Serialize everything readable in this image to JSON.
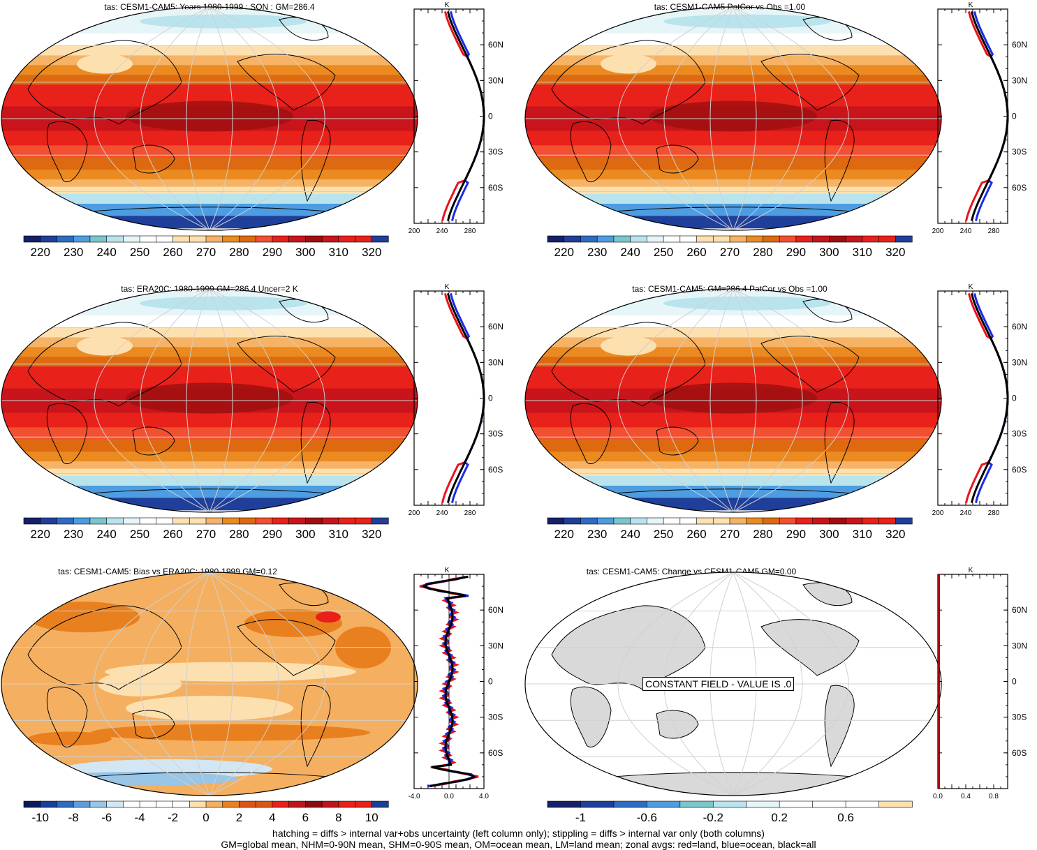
{
  "colors": {
    "warm": [
      "#fde0b0",
      "#f6b366",
      "#ea8a20",
      "#dd6a10",
      "#f25030",
      "#e8211a",
      "#c8141a",
      "#a00f10"
    ],
    "cool": [
      "#16206a",
      "#1f3f9a",
      "#2e6cc3",
      "#4d9de0",
      "#79c6cc",
      "#b9e4ee",
      "#e6f5f8",
      "#ffffff"
    ],
    "bias_pos": [
      "#fde0b0",
      "#f4b060",
      "#e88020",
      "#dd5515",
      "#e8201a",
      "#c01418",
      "#8c0b10"
    ],
    "bias_neg": [
      "#0b1a58",
      "#1a3f96",
      "#2d6bbf",
      "#5e9dd8",
      "#99c5e6",
      "#d2e7f3",
      "#ffffff"
    ],
    "land": "#d9d9d9",
    "line_land": "#e8141a",
    "line_ocean": "#1a2be8",
    "line_all": "#000000",
    "grid": "#d0d0d0"
  },
  "panels": [
    {
      "title": "tas: CESM1-CAM5: Years 1980-1999 : SON : GM=286.4",
      "type": "abs"
    },
    {
      "title": "tas: CESM1-CAM5 PatCor vs Obs =1.00",
      "type": "abs"
    },
    {
      "title": "tas: ERA20C: 1980-1999 GM=286.4 Uncer=2 K",
      "type": "abs"
    },
    {
      "title": "tas: CESM1-CAM5: GM=286.4 PatCor vs Obs =1.00",
      "type": "abs"
    },
    {
      "title": "tas: CESM1-CAM5: Bias vs ERA20C: 1980-1999  GM=0.12",
      "type": "bias"
    },
    {
      "title": "tas: CESM1-CAM5: Change vs CESM1-CAM5 GM=0.00",
      "type": "const"
    }
  ],
  "constant_label": "CONSTANT FIELD - VALUE IS .0",
  "zonal": {
    "unit": "K",
    "lat_labels": [
      "60N",
      "30N",
      "0",
      "30S",
      "60S"
    ],
    "abs_ticks": [
      "200",
      "240",
      "280"
    ],
    "bias_ticks": [
      "-4.0",
      "0.0",
      "4.0"
    ],
    "const_ticks": [
      "0.0",
      "0.4",
      "0.8"
    ]
  },
  "colorbars": {
    "abs": [
      "220",
      "230",
      "240",
      "250",
      "260",
      "270",
      "280",
      "290",
      "300",
      "310",
      "320"
    ],
    "bias": [
      "-10",
      "-8",
      "-6",
      "-4",
      "-2",
      "0",
      "2",
      "4",
      "6",
      "8",
      "10"
    ],
    "const": [
      "-1",
      "-0.6",
      "-0.2",
      "0.2",
      "0.6"
    ]
  },
  "chart_data": [
    {
      "type": "heatmap",
      "title": "tas: CESM1-CAM5: Years 1980-1999 : SON : GM=286.4",
      "variable": "tas",
      "units": "K",
      "global_mean": 286.4,
      "colorbar_levels": [
        220,
        230,
        240,
        250,
        260,
        270,
        280,
        290,
        300,
        310,
        320
      ],
      "zonal_profile": {
        "x_range": [
          200,
          300
        ],
        "lat_ticks": [
          "60N",
          "30N",
          "0",
          "30S",
          "60S"
        ],
        "series": [
          "land",
          "ocean",
          "all"
        ]
      }
    },
    {
      "type": "heatmap",
      "title": "tas: CESM1-CAM5 PatCor vs Obs =1.00",
      "pattern_correlation": 1.0,
      "colorbar_levels": [
        220,
        230,
        240,
        250,
        260,
        270,
        280,
        290,
        300,
        310,
        320
      ]
    },
    {
      "type": "heatmap",
      "title": "tas: ERA20C: 1980-1999 GM=286.4 Uncer=2 K",
      "global_mean": 286.4,
      "uncertainty_K": 2,
      "colorbar_levels": [
        220,
        230,
        240,
        250,
        260,
        270,
        280,
        290,
        300,
        310,
        320
      ]
    },
    {
      "type": "heatmap",
      "title": "tas: CESM1-CAM5: GM=286.4 PatCor vs Obs =1.00",
      "global_mean": 286.4,
      "pattern_correlation": 1.0,
      "colorbar_levels": [
        220,
        230,
        240,
        250,
        260,
        270,
        280,
        290,
        300,
        310,
        320
      ]
    },
    {
      "type": "heatmap",
      "title": "tas: CESM1-CAM5: Bias vs ERA20C: 1980-1999  GM=0.12",
      "global_mean": 0.12,
      "colorbar_levels": [
        -10,
        -8,
        -6,
        -4,
        -2,
        0,
        2,
        4,
        6,
        8,
        10
      ],
      "zonal_profile": {
        "x_range": [
          -4,
          4
        ]
      }
    },
    {
      "type": "heatmap",
      "title": "tas: CESM1-CAM5: Change vs CESM1-CAM5 GM=0.00",
      "global_mean": 0.0,
      "constant_value": 0.0,
      "colorbar_levels": [
        -1,
        -0.6,
        -0.2,
        0.2,
        0.6
      ],
      "zonal_profile": {
        "x_range": [
          0,
          1
        ]
      }
    }
  ],
  "footer": {
    "line1": "hatching = diffs > internal var+obs uncertainty (left column only); stippling = diffs > internal var only (both columns)",
    "line2": "GM=global mean, NHM=0-90N mean, SHM=0-90S mean, OM=ocean mean, LM=land mean; zonal avgs: red=land, blue=ocean, black=all"
  }
}
